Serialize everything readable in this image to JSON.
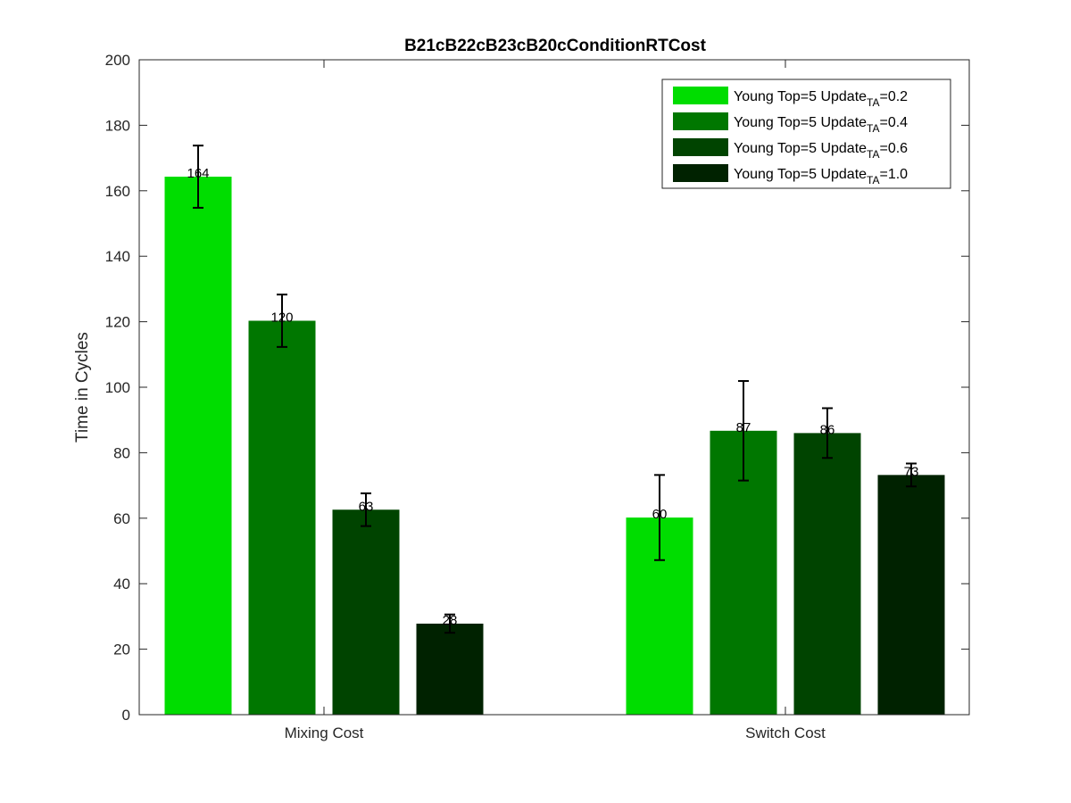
{
  "chart_data": {
    "type": "bar",
    "title": "B21cB22cB23cB20cConditionRTCost",
    "xlabel": "",
    "ylabel": "Time in Cycles",
    "ylim": [
      0,
      200
    ],
    "yticks": [
      "0",
      "20",
      "40",
      "60",
      "80",
      "100",
      "120",
      "140",
      "160",
      "180",
      "200"
    ],
    "categories": [
      "Mixing Cost",
      "Switch Cost"
    ],
    "legend_position": "top-right",
    "grid": false,
    "series": [
      {
        "name": "Young Top=5 Update",
        "name_sub": "TA",
        "name_suffix": "=0.2",
        "color": "#00dd00",
        "values": [
          164.3,
          60.2
        ],
        "errors": [
          9.5,
          13.0
        ],
        "labels": [
          "164",
          "60"
        ]
      },
      {
        "name": "Young Top=5 Update",
        "name_sub": "TA",
        "name_suffix": "=0.4",
        "color": "#007700",
        "values": [
          120.3,
          86.7
        ],
        "errors": [
          8.0,
          15.2
        ],
        "labels": [
          "120",
          "87"
        ]
      },
      {
        "name": "Young Top=5 Update",
        "name_sub": "TA",
        "name_suffix": "=0.6",
        "color": "#004400",
        "values": [
          62.6,
          86.0
        ],
        "errors": [
          5.0,
          7.6
        ],
        "labels": [
          "63",
          "86"
        ]
      },
      {
        "name": "Young Top=5 Update",
        "name_sub": "TA",
        "name_suffix": "=1.0",
        "color": "#002200",
        "values": [
          27.8,
          73.2
        ],
        "errors": [
          2.8,
          3.5
        ],
        "labels": [
          "28",
          "73"
        ]
      }
    ]
  }
}
